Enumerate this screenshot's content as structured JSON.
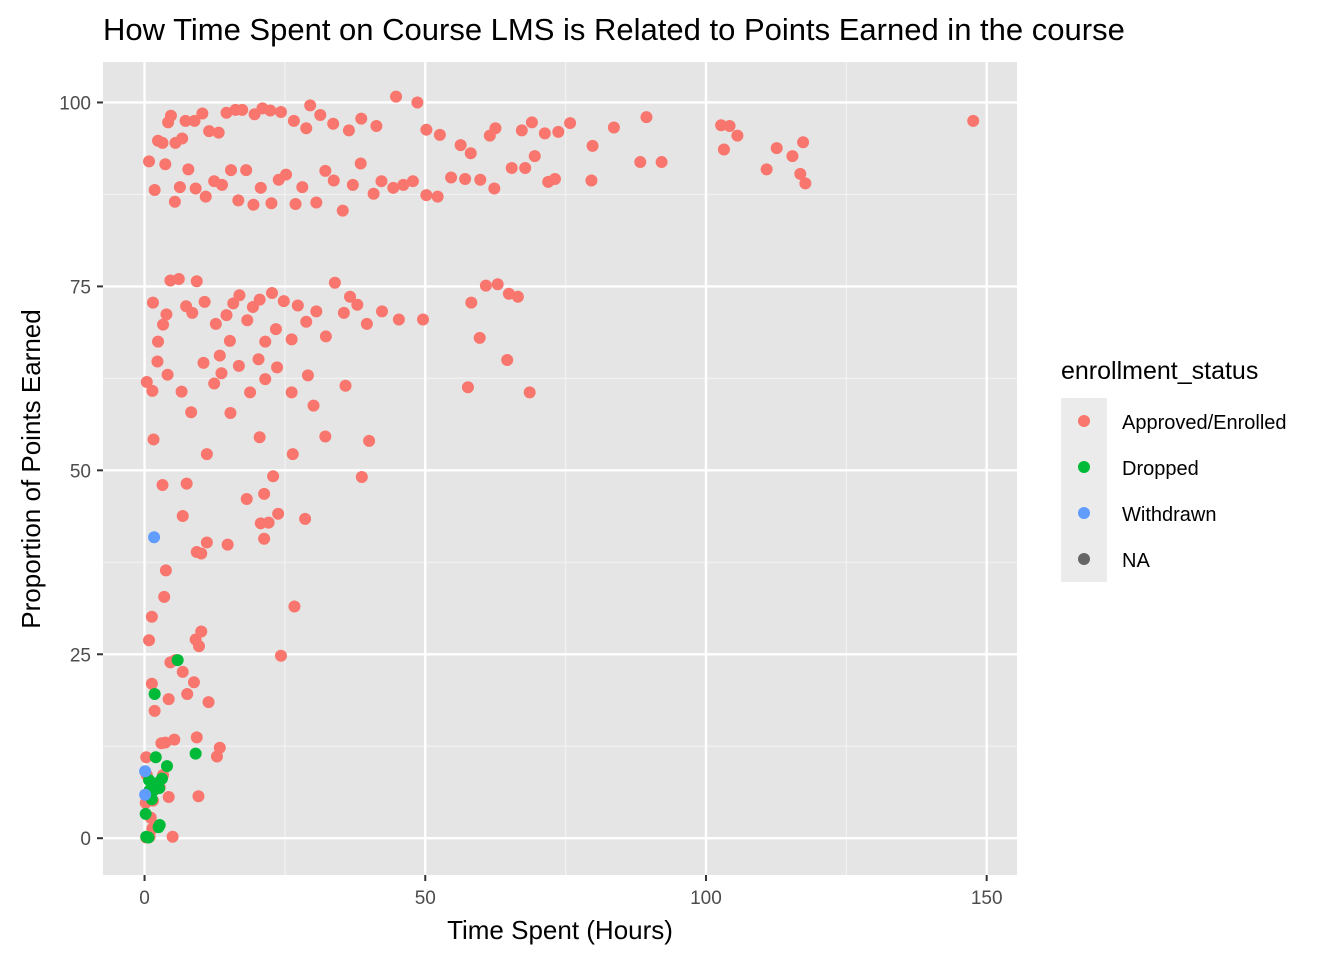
{
  "chart_data": {
    "type": "scatter",
    "title": "How Time Spent on Course LMS is Related to Points Earned in the course",
    "xlabel": "Time Spent (Hours)",
    "ylabel": "Proportion of Points Earned",
    "xlim": [
      -7.4,
      155.4
    ],
    "ylim": [
      -5,
      105.5
    ],
    "x_ticks": [
      0,
      50,
      100,
      150
    ],
    "y_ticks": [
      0,
      25,
      50,
      75,
      100
    ],
    "grid": true,
    "background": "#e5e5e5",
    "legend": {
      "title": "enrollment_status",
      "placement": "right",
      "entries": [
        {
          "label": "Approved/Enrolled",
          "color": "#f8766d"
        },
        {
          "label": "Dropped",
          "color": "#00ba38"
        },
        {
          "label": "Withdrawn",
          "color": "#619cff"
        },
        {
          "label": "NA",
          "color": "#666666"
        }
      ]
    },
    "series": [
      {
        "name": "Approved/Enrolled",
        "color": "#f8766d",
        "points": [
          [
            0.8,
            92
          ],
          [
            2.4,
            94.8
          ],
          [
            3.2,
            94.5
          ],
          [
            4.2,
            97.3
          ],
          [
            4.7,
            98.2
          ],
          [
            5.5,
            94.5
          ],
          [
            6.7,
            95.1
          ],
          [
            7.3,
            97.5
          ],
          [
            8.9,
            97.5
          ],
          [
            10.3,
            98.5
          ],
          [
            11.5,
            96.1
          ],
          [
            13.2,
            95.9
          ],
          [
            14.6,
            98.6
          ],
          [
            16.2,
            99
          ],
          [
            17.4,
            99
          ],
          [
            19.6,
            98.4
          ],
          [
            21,
            99.2
          ],
          [
            22.4,
            98.9
          ],
          [
            24.3,
            98.7
          ],
          [
            26.6,
            97.5
          ],
          [
            28.8,
            96.5
          ],
          [
            29.5,
            99.6
          ],
          [
            31.3,
            98.3
          ],
          [
            33.6,
            97.1
          ],
          [
            36.4,
            96.2
          ],
          [
            38.6,
            97.8
          ],
          [
            41.3,
            96.8
          ],
          [
            44.8,
            100.8
          ],
          [
            48.6,
            100
          ],
          [
            50.2,
            96.3
          ],
          [
            52.6,
            95.6
          ],
          [
            56.3,
            94.2
          ],
          [
            58.1,
            93.1
          ],
          [
            61.5,
            95.5
          ],
          [
            62.5,
            96.5
          ],
          [
            67.2,
            96.2
          ],
          [
            69,
            97.3
          ],
          [
            71.3,
            95.8
          ],
          [
            73.7,
            96
          ],
          [
            75.8,
            97.2
          ],
          [
            79.8,
            94.1
          ],
          [
            83.6,
            96.6
          ],
          [
            89.4,
            98
          ],
          [
            102.7,
            96.9
          ],
          [
            104.2,
            96.8
          ],
          [
            105.6,
            95.5
          ],
          [
            147.6,
            97.5
          ],
          [
            1.8,
            88.1
          ],
          [
            3.7,
            91.6
          ],
          [
            5.4,
            86.5
          ],
          [
            6.3,
            88.5
          ],
          [
            7.8,
            90.9
          ],
          [
            9.1,
            88.3
          ],
          [
            10.9,
            87.2
          ],
          [
            12.4,
            89.3
          ],
          [
            13.8,
            88.8
          ],
          [
            15.4,
            90.8
          ],
          [
            16.7,
            86.7
          ],
          [
            18.1,
            90.8
          ],
          [
            19.4,
            86.1
          ],
          [
            20.7,
            88.4
          ],
          [
            22.6,
            86.3
          ],
          [
            23.9,
            89.5
          ],
          [
            25.2,
            90.2
          ],
          [
            26.9,
            86.2
          ],
          [
            28.1,
            88.5
          ],
          [
            30.6,
            86.4
          ],
          [
            32.2,
            90.7
          ],
          [
            33.7,
            89.4
          ],
          [
            35.3,
            85.3
          ],
          [
            37.1,
            88.8
          ],
          [
            38.5,
            91.7
          ],
          [
            40.8,
            87.6
          ],
          [
            42.2,
            89.3
          ],
          [
            44.3,
            88.4
          ],
          [
            46.1,
            88.8
          ],
          [
            47.8,
            89.3
          ],
          [
            50.2,
            87.4
          ],
          [
            52.2,
            87.2
          ],
          [
            54.6,
            89.8
          ],
          [
            57.1,
            89.6
          ],
          [
            59.8,
            89.5
          ],
          [
            62.3,
            88.3
          ],
          [
            65.4,
            91.1
          ],
          [
            67.8,
            91.1
          ],
          [
            69.5,
            92.7
          ],
          [
            71.9,
            89.2
          ],
          [
            73.1,
            89.6
          ],
          [
            79.6,
            89.4
          ],
          [
            88.3,
            91.9
          ],
          [
            92.1,
            91.9
          ],
          [
            103.2,
            93.6
          ],
          [
            110.8,
            90.9
          ],
          [
            112.6,
            93.8
          ],
          [
            115.4,
            92.7
          ],
          [
            116.8,
            90.3
          ],
          [
            117.7,
            89
          ],
          [
            117.3,
            94.6
          ],
          [
            1.5,
            72.8
          ],
          [
            2.4,
            67.5
          ],
          [
            3.3,
            69.8
          ],
          [
            3.9,
            71.2
          ],
          [
            4.6,
            75.8
          ],
          [
            6.1,
            76
          ],
          [
            7.4,
            72.3
          ],
          [
            8.5,
            71.4
          ],
          [
            9.3,
            75.7
          ],
          [
            10.7,
            72.9
          ],
          [
            12.7,
            69.9
          ],
          [
            13.4,
            65.6
          ],
          [
            14.6,
            71.1
          ],
          [
            15.2,
            67.6
          ],
          [
            15.8,
            72.7
          ],
          [
            16.9,
            73.8
          ],
          [
            18.3,
            70.4
          ],
          [
            19.3,
            72.2
          ],
          [
            20.5,
            73.2
          ],
          [
            21.5,
            67.5
          ],
          [
            22.7,
            74.1
          ],
          [
            23.4,
            69.2
          ],
          [
            24.8,
            73
          ],
          [
            26.2,
            67.8
          ],
          [
            27.3,
            72.4
          ],
          [
            28.8,
            70.2
          ],
          [
            30.6,
            71.6
          ],
          [
            32.3,
            68.2
          ],
          [
            33.9,
            75.5
          ],
          [
            35.5,
            71.4
          ],
          [
            36.6,
            73.6
          ],
          [
            37.9,
            72.5
          ],
          [
            39.6,
            69.9
          ],
          [
            42.3,
            71.6
          ],
          [
            45.3,
            70.5
          ],
          [
            49.6,
            70.5
          ],
          [
            58.2,
            72.8
          ],
          [
            60.8,
            75.1
          ],
          [
            62.9,
            75.3
          ],
          [
            64.9,
            74
          ],
          [
            66.5,
            73.6
          ],
          [
            0.4,
            62
          ],
          [
            1.4,
            60.8
          ],
          [
            2.3,
            64.8
          ],
          [
            4.1,
            63
          ],
          [
            6.6,
            60.7
          ],
          [
            8.3,
            57.9
          ],
          [
            10.5,
            64.6
          ],
          [
            12.4,
            61.8
          ],
          [
            13.7,
            63.2
          ],
          [
            15.3,
            57.8
          ],
          [
            16.8,
            64.2
          ],
          [
            18.8,
            60.6
          ],
          [
            20.3,
            65.1
          ],
          [
            21.5,
            62.4
          ],
          [
            23.6,
            64
          ],
          [
            26.2,
            60.6
          ],
          [
            29.1,
            62.9
          ],
          [
            30.1,
            58.8
          ],
          [
            35.8,
            61.5
          ],
          [
            57.6,
            61.3
          ],
          [
            59.7,
            68
          ],
          [
            64.6,
            65
          ],
          [
            68.6,
            60.6
          ],
          [
            1.6,
            54.2
          ],
          [
            3.2,
            48
          ],
          [
            7.5,
            48.2
          ],
          [
            11.1,
            52.2
          ],
          [
            18.2,
            46.1
          ],
          [
            20.5,
            54.5
          ],
          [
            21.3,
            46.8
          ],
          [
            22.9,
            49.2
          ],
          [
            26.4,
            52.2
          ],
          [
            32.2,
            54.6
          ],
          [
            38.7,
            49.1
          ],
          [
            40,
            54
          ],
          [
            28.6,
            43.4
          ],
          [
            23.8,
            44.1
          ],
          [
            20.7,
            42.8
          ],
          [
            22.1,
            42.9
          ],
          [
            21.3,
            40.7
          ],
          [
            14.8,
            39.9
          ],
          [
            11.1,
            40.2
          ],
          [
            9.3,
            38.9
          ],
          [
            10.1,
            38.7
          ],
          [
            6.8,
            43.8
          ],
          [
            3.8,
            36.4
          ],
          [
            3.5,
            32.8
          ],
          [
            1.3,
            30.1
          ],
          [
            0.8,
            26.9
          ],
          [
            9.1,
            27
          ],
          [
            10.1,
            28.1
          ],
          [
            9.7,
            26.1
          ],
          [
            4.6,
            23.9
          ],
          [
            5.5,
            24.2
          ],
          [
            6.8,
            22.6
          ],
          [
            1.3,
            21
          ],
          [
            1.8,
            17.3
          ],
          [
            4.3,
            18.9
          ],
          [
            7.6,
            19.6
          ],
          [
            8.8,
            21.2
          ],
          [
            11.4,
            18.5
          ],
          [
            3,
            12.9
          ],
          [
            3.7,
            13
          ],
          [
            5.3,
            13.4
          ],
          [
            9.3,
            13.7
          ],
          [
            12.9,
            11.1
          ],
          [
            13.4,
            12.3
          ],
          [
            3.3,
            8.6
          ],
          [
            4.3,
            5.6
          ],
          [
            9.6,
            5.7
          ],
          [
            2.7,
            6.9
          ],
          [
            1.5,
            5.1
          ],
          [
            1.1,
            2.8
          ],
          [
            0.4,
            8.6
          ],
          [
            0.3,
            11
          ],
          [
            0.5,
            5.5
          ],
          [
            0.2,
            4.8
          ],
          [
            0.3,
            0.1
          ],
          [
            0.9,
            0.2
          ],
          [
            1.4,
            1.3
          ],
          [
            5,
            0.2
          ],
          [
            24.3,
            24.8
          ],
          [
            26.7,
            31.5
          ]
        ]
      },
      {
        "name": "Dropped",
        "color": "#00ba38",
        "points": [
          [
            5.9,
            24.2
          ],
          [
            1.8,
            19.6
          ],
          [
            9.1,
            11.5
          ],
          [
            2,
            11
          ],
          [
            4,
            9.8
          ],
          [
            3.1,
            8.1
          ],
          [
            0.8,
            7.9
          ],
          [
            1.7,
            7.4
          ],
          [
            2.3,
            7.5
          ],
          [
            1.6,
            6.5
          ],
          [
            0.9,
            6.5
          ],
          [
            2.6,
            6.8
          ],
          [
            1.3,
            5.3
          ],
          [
            0.2,
            3.3
          ],
          [
            2.7,
            1.8
          ],
          [
            2.5,
            1.5
          ],
          [
            0.3,
            0.2
          ],
          [
            0.7,
            0.1
          ]
        ]
      },
      {
        "name": "Withdrawn",
        "color": "#619cff",
        "points": [
          [
            1.7,
            40.9
          ],
          [
            0.1,
            9.1
          ],
          [
            0.1,
            5.9
          ]
        ]
      }
    ]
  }
}
